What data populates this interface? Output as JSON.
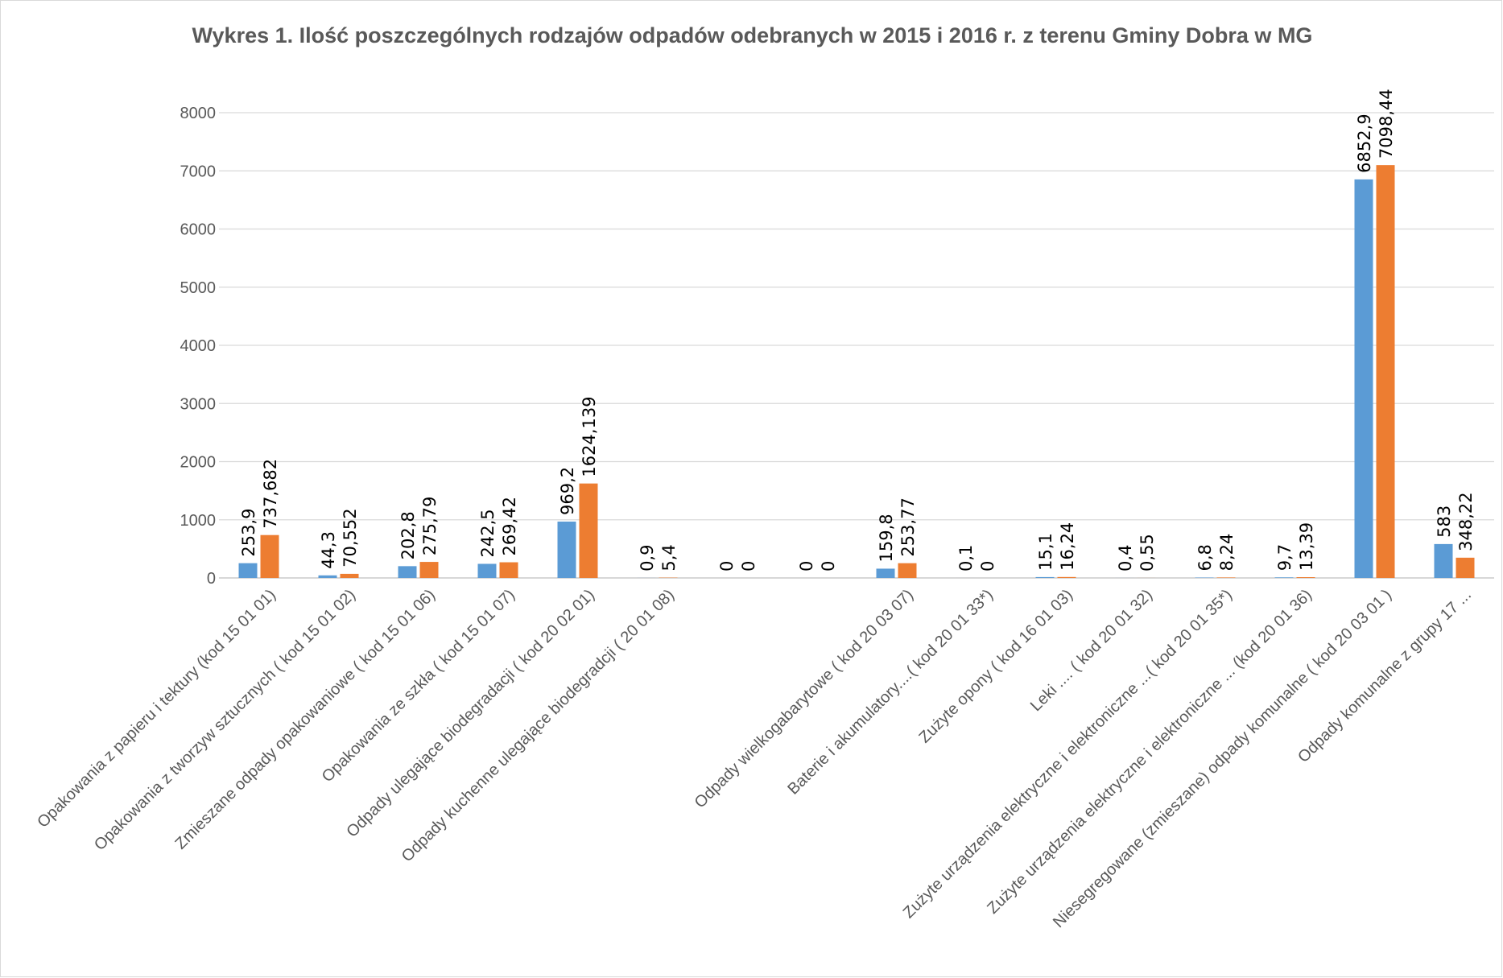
{
  "chart_data": {
    "type": "bar",
    "title": "Wykres  1. Ilość poszczególnych  rodzajów odpadów odebranych w  2015 i 2016  r.  z terenu Gminy Dobra w MG",
    "xlabel": "",
    "ylabel": "",
    "ylim": [
      0,
      8000
    ],
    "y_ticks": [
      "0",
      "1000",
      "2000",
      "3000",
      "4000",
      "5000",
      "6000",
      "7000",
      "8000"
    ],
    "grid": true,
    "legend": "none",
    "categories": [
      "Opakowania z papieru i tektury (kod 15 01 01)",
      "Opakowania z tworzyw sztucznych ( kod 15 01 02)",
      "Zmieszane odpady opakowaniowe ( kod 15 01 06)",
      "Opakowania ze szkła ( kod 15 01 07)",
      "Odpady ulegające biodegradacji ( kod 20 02 01)",
      "Odpady kuchenne ulegające biodegradcji ( 20 01 08)",
      "",
      "",
      "Odpady wielkogabarytowe ( kod 20 03 07)",
      "Baterie i akumulatory....( kod 20 01 33*)",
      "Zużyte opony ( kod 16 01 03)",
      "Leki .... ( kod 20 01 32)",
      "Zużyte urządzenia elektryczne i elektroniczne ...( kod 20 01 35*)",
      "Zużyte urządzenia elektryczne i elektroniczne ... (kod 20 01 36)",
      "Niesegregowane (zmieszane) odpady komunalne ( kod 20 03 01 )",
      "Odpady komunalne z grupy 17 ..."
    ],
    "series": [
      {
        "color": "#5b9bd5",
        "values": [
          253.9,
          44.3,
          202.8,
          242.5,
          969.2,
          0.9,
          0,
          0,
          159.8,
          0.1,
          15.1,
          0.4,
          6.8,
          9.7,
          6852.9,
          583
        ],
        "labels": [
          "253,9",
          "44,3",
          "202,8",
          "242,5",
          "969,2",
          "0,9",
          "0",
          "0",
          "159,8",
          "0,1",
          "15,1",
          "0,4",
          "6,8",
          "9,7",
          "6852,9",
          "583"
        ]
      },
      {
        "color": "#ed7d31",
        "values": [
          737.682,
          70.552,
          275.79,
          269.42,
          1624.139,
          5.4,
          0,
          0,
          253.77,
          0,
          16.24,
          0.55,
          8.24,
          13.39,
          7098.44,
          348.22
        ],
        "labels": [
          "737,682",
          "70,552",
          "275,79",
          "269,42",
          "1624,139",
          "5,4",
          "0",
          "0",
          "253,77",
          "0",
          "16,24",
          "0,55",
          "8,24",
          "13,39",
          "7098,44",
          "348,22"
        ]
      }
    ]
  }
}
